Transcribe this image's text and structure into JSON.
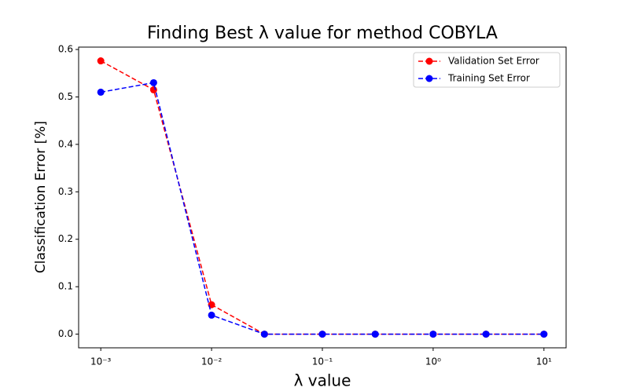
{
  "chart_data": {
    "type": "line",
    "title": "Finding Best λ value for method COBYLA",
    "xlabel": "λ value",
    "ylabel": "Classification Error [%]",
    "x": [
      0.001,
      0.003,
      0.01,
      0.03,
      0.1,
      0.3,
      1,
      3,
      10
    ],
    "series": [
      {
        "name": "Validation Set Error",
        "color": "#ff0000",
        "values": [
          0.576,
          0.515,
          0.062,
          0,
          0,
          0,
          0,
          0,
          0
        ]
      },
      {
        "name": "Training Set Error",
        "color": "#0000ff",
        "values": [
          0.51,
          0.53,
          0.04,
          0,
          0,
          0,
          0,
          0,
          0
        ]
      }
    ],
    "xscale": "log",
    "xlim": [
      0.000631,
      15.85
    ],
    "xticks": [
      {
        "value": 0.001,
        "label": "10⁻³"
      },
      {
        "value": 0.01,
        "label": "10⁻²"
      },
      {
        "value": 0.1,
        "label": "10⁻¹"
      },
      {
        "value": 1,
        "label": "10⁰"
      },
      {
        "value": 10,
        "label": "10¹"
      }
    ],
    "ylim": [
      -0.0288,
      0.605
    ],
    "yticks": [
      {
        "value": 0,
        "label": "0.0"
      },
      0.1,
      0.2,
      0.3,
      0.4,
      0.5,
      0.6
    ],
    "legend": "upper right"
  }
}
